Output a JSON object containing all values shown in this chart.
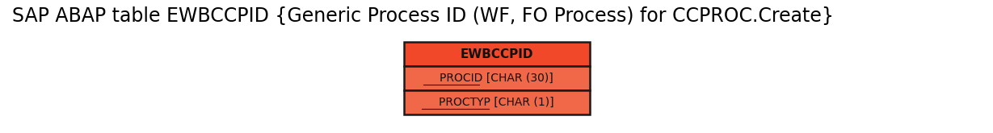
{
  "title": "SAP ABAP table EWBCCPID {Generic Process ID (WF, FO Process) for CCPROC.Create}",
  "title_fontsize": 17,
  "title_color": "#000000",
  "background_color": "#ffffff",
  "table_name": "EWBCCPID",
  "header_bg_color": "#f04828",
  "row_bg_color": "#f06848",
  "border_color": "#1a1a1a",
  "text_color": "#111111",
  "header_fontsize": 11,
  "row_fontsize": 10,
  "fields": [
    {
      "label": "PROCID",
      "type": " [CHAR (30)]"
    },
    {
      "label": "PROCTYP",
      "type": " [CHAR (1)]"
    }
  ]
}
